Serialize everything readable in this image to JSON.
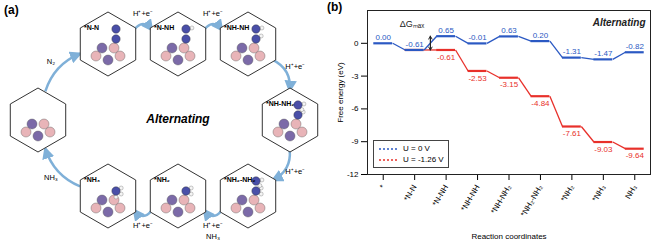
{
  "chart_data": {
    "type": "step",
    "categories": [
      "*",
      "*N-N",
      "*N-NH",
      "*NH-NH",
      "*NH-NH₂",
      "*NH₂-NH₂",
      "*NH₂",
      "*NH₃",
      "NH₃"
    ],
    "series": [
      {
        "name": "U = 0 V",
        "color": "#2b59c3",
        "line_style": "dotted",
        "values": [
          0.0,
          -0.61,
          0.65,
          -0.01,
          0.63,
          0.2,
          -1.31,
          -1.47,
          -0.82
        ],
        "value_labels": [
          "0.00",
          "-0.61",
          "0.65",
          "-0.01",
          "0.63",
          "0.20",
          "-1.31",
          "-1.47",
          "-0.82"
        ]
      },
      {
        "name": "U = -1.26 V",
        "color": "#e8302a",
        "line_style": "dotted",
        "values": [
          null,
          -0.61,
          -0.61,
          -2.53,
          -3.15,
          -4.84,
          -7.61,
          -9.03,
          -9.64
        ],
        "value_labels": [
          null,
          null,
          "-0.61",
          "-2.53",
          "-3.15",
          "-4.84",
          "-7.61",
          "-9.03",
          "-9.64"
        ]
      }
    ],
    "ylim": [
      -12,
      3
    ],
    "yticks": [
      -12,
      -9,
      -6,
      -3,
      0
    ],
    "y_label": "Free energy (eV)",
    "x_label": "Reaction coordinates",
    "grid": false,
    "legend": "bottom-left",
    "data_labels": true,
    "annotations": [
      {
        "text": "(b)",
        "position": "top-left"
      },
      {
        "text": "Alternating",
        "position": "top-right"
      },
      {
        "text": "ΔGₘₐₓ",
        "series": "U = 0 V",
        "from": "*N-N",
        "to": "*N-NH"
      }
    ]
  },
  "diagram": {
    "panel": "(a)",
    "title": "Alternating",
    "nodes": [
      null,
      "*N-N",
      "*N-NH",
      "*NH-NH",
      "*NH-NH₂",
      "*NH₂-NH₂",
      "*NH₂",
      "*NH₃"
    ],
    "edges": [
      {
        "from": 0,
        "to": 1,
        "labels": [
          "N₂"
        ]
      },
      {
        "from": 1,
        "to": 2,
        "labels": [
          "H⁺+e⁻"
        ]
      },
      {
        "from": 2,
        "to": 3,
        "labels": [
          "H⁺+e⁻"
        ]
      },
      {
        "from": 3,
        "to": 4,
        "labels": [
          "H⁺+e⁻"
        ]
      },
      {
        "from": 4,
        "to": 5,
        "labels": [
          "H⁺+e⁻"
        ]
      },
      {
        "from": 5,
        "to": 6,
        "labels": [
          "H⁺+e⁻",
          "NH₃"
        ]
      },
      {
        "from": 6,
        "to": 7,
        "labels": [
          "H⁺+e⁻"
        ]
      },
      {
        "from": 7,
        "to": 0,
        "labels": [
          "NH₃"
        ]
      }
    ]
  }
}
